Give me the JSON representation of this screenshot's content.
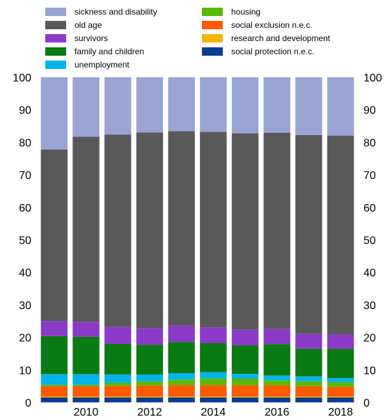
{
  "chart_data": {
    "type": "bar",
    "stacked": true,
    "percent_stacked": true,
    "categories": [
      "2009",
      "2010",
      "2011",
      "2012",
      "2013",
      "2014",
      "2015",
      "2016",
      "2017",
      "2018"
    ],
    "x_tick_labels": [
      "",
      "2010",
      "",
      "2012",
      "",
      "2014",
      "",
      "2016",
      "",
      "2018"
    ],
    "ylim": [
      0,
      100
    ],
    "y_ticks": [
      0,
      10,
      20,
      30,
      40,
      50,
      60,
      70,
      80,
      90,
      100
    ],
    "y_axis_both_sides": true,
    "grid": false,
    "legend_position": "top",
    "series": [
      {
        "name": "social protection n.e.c.",
        "color": "#0a3d8f",
        "values": [
          1.5,
          1.5,
          1.5,
          1.5,
          1.5,
          1.5,
          1.5,
          1.5,
          1.5,
          1.5
        ]
      },
      {
        "name": "research and development",
        "color": "#f2b600",
        "values": [
          0.3,
          0.3,
          0.3,
          0.3,
          0.3,
          0.3,
          0.3,
          0.3,
          0.3,
          0.3
        ]
      },
      {
        "name": "social exclusion n.e.c.",
        "color": "#ff5a00",
        "values": [
          3.2,
          3.2,
          3.3,
          3.4,
          3.5,
          3.5,
          3.5,
          3.5,
          3.2,
          3.0
        ]
      },
      {
        "name": "housing",
        "color": "#5bb800",
        "values": [
          0.4,
          0.4,
          0.9,
          1.3,
          1.7,
          2.0,
          2.0,
          1.5,
          1.5,
          1.4
        ]
      },
      {
        "name": "unemployment",
        "color": "#00b4e6",
        "values": [
          3.3,
          3.3,
          2.6,
          2.1,
          2.0,
          2.0,
          1.5,
          1.5,
          1.5,
          1.3
        ]
      },
      {
        "name": "family and children",
        "color": "#0a7a14",
        "values": [
          11.7,
          11.5,
          9.4,
          9.2,
          9.6,
          8.9,
          8.8,
          9.7,
          8.6,
          9.0
        ]
      },
      {
        "name": "survivors",
        "color": "#8a3ac7",
        "values": [
          4.6,
          4.6,
          5.2,
          5.1,
          5.0,
          4.9,
          4.8,
          4.7,
          4.5,
          4.4
        ]
      },
      {
        "name": "old age",
        "color": "#595959",
        "values": [
          52.8,
          56.9,
          59.2,
          60.4,
          59.8,
          60.1,
          60.6,
          60.5,
          61.4,
          61.2
        ]
      },
      {
        "name": "sickness and disability",
        "color": "#9aa4d4",
        "values": [
          22.2,
          18.3,
          17.6,
          17.0,
          16.6,
          16.8,
          17.3,
          17.1,
          17.8,
          18.0
        ]
      }
    ],
    "legend_order": [
      "sickness and disability",
      "old age",
      "survivors",
      "family and children",
      "unemployment",
      "housing",
      "social exclusion n.e.c.",
      "research and development",
      "social protection n.e.c."
    ]
  }
}
